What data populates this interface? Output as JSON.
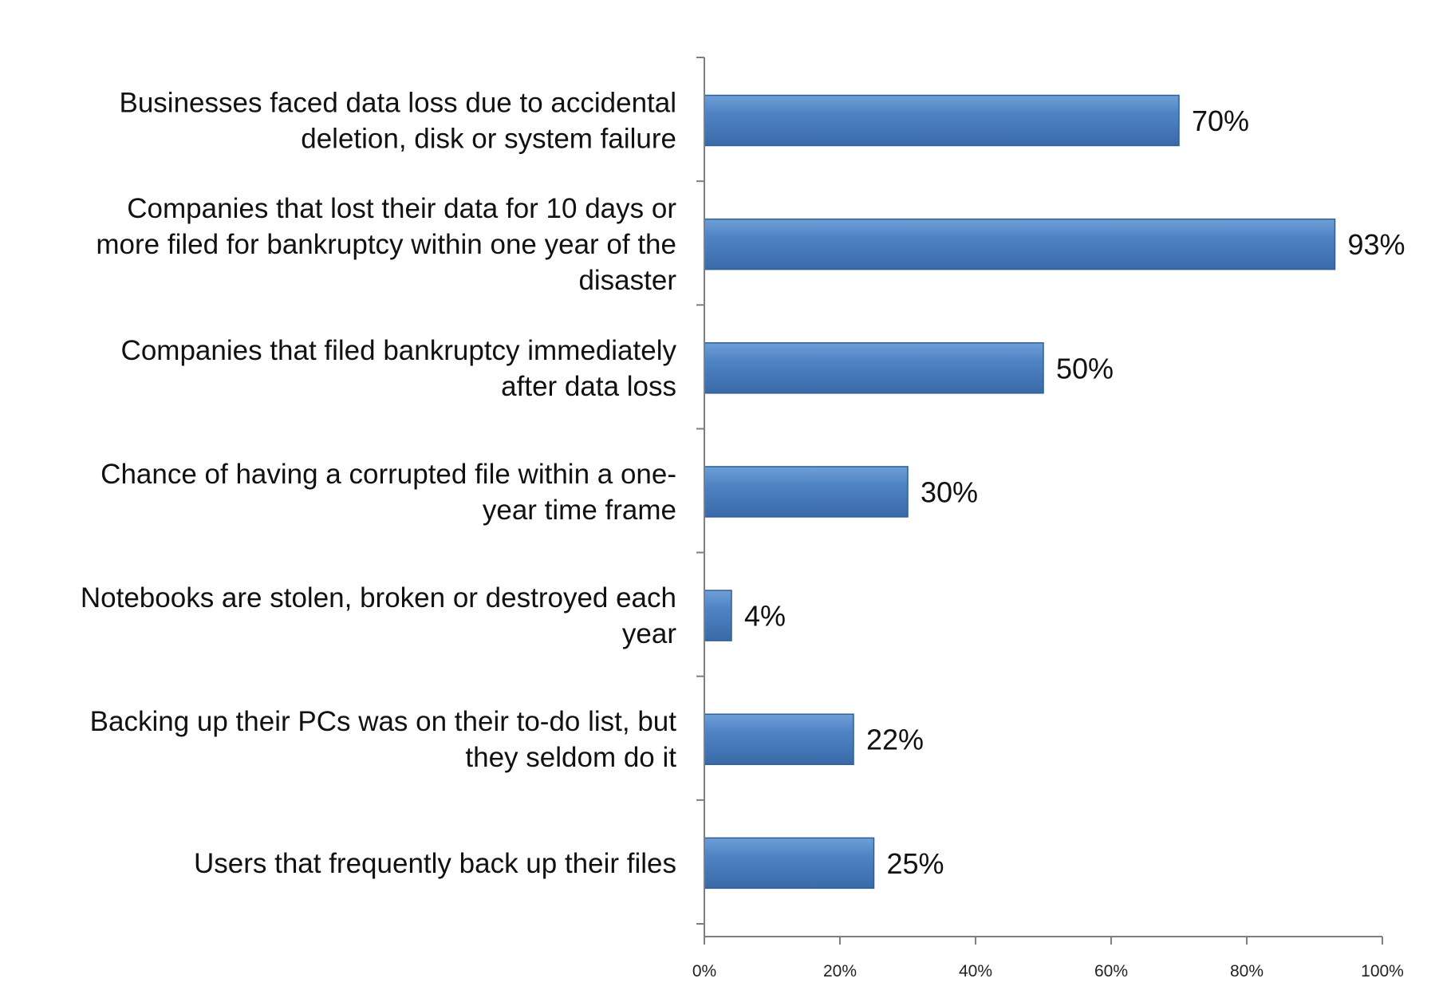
{
  "chart_data": {
    "type": "bar",
    "orientation": "horizontal",
    "title": "",
    "xlabel": "",
    "ylabel": "",
    "xlim": [
      0,
      100
    ],
    "x_ticks": [
      0,
      20,
      40,
      60,
      80,
      100
    ],
    "x_tick_labels": [
      "0%",
      "20%",
      "40%",
      "60%",
      "80%",
      "100%"
    ],
    "grid": false,
    "legend": "none",
    "bar_color": "#4a7ebb",
    "bar_edge_color": "#2f5f96",
    "categories": [
      [
        "Businesses faced data loss due to accidental",
        "deletion, disk or system failure"
      ],
      [
        "Companies that lost their data for 10 days or",
        "more filed for bankruptcy within one year of the",
        "disaster"
      ],
      [
        "Companies that filed bankruptcy immediately",
        "after data loss"
      ],
      [
        "Chance of having a corrupted file within a one-",
        "year time frame"
      ],
      [
        "Notebooks are stolen, broken or destroyed each",
        "year"
      ],
      [
        "Backing up their PCs was on their to-do list, but",
        "they seldom do it"
      ],
      [
        "Users that frequently back up their files"
      ]
    ],
    "values": [
      70,
      93,
      50,
      30,
      4,
      22,
      25
    ],
    "value_labels": [
      "70%",
      "93%",
      "50%",
      "30%",
      "4%",
      "22%",
      "25%"
    ]
  }
}
